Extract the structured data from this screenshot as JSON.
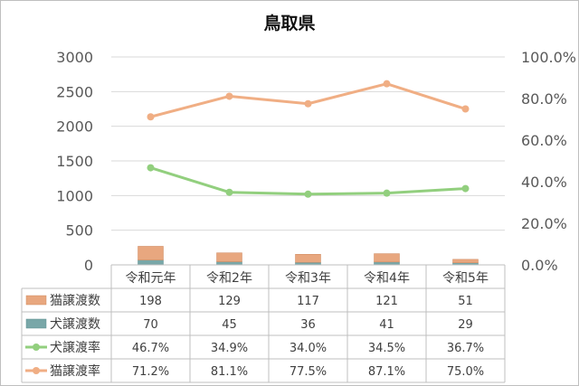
{
  "chart_data": {
    "type": "bar",
    "title": "鳥取県",
    "categories": [
      "令和元年",
      "令和2年",
      "令和3年",
      "令和4年",
      "令和5年"
    ],
    "y_left": {
      "ylim": [
        0,
        3000
      ],
      "ticks": [
        "3000",
        "2500",
        "2000",
        "1500",
        "1000",
        "500",
        "0"
      ]
    },
    "y_right": {
      "ylim": [
        0,
        1
      ],
      "ticks": [
        "100.0%",
        "80.0%",
        "60.0%",
        "40.0%",
        "20.0%",
        "0.0%"
      ]
    },
    "gridlines": true,
    "legend": "data-table",
    "series": [
      {
        "name": "猫譲渡数",
        "type": "stacked-bar",
        "axis": "left",
        "color": "#e8a77f",
        "values": [
          198,
          129,
          117,
          121,
          51
        ],
        "labels": [
          "198",
          "129",
          "117",
          "121",
          "51"
        ]
      },
      {
        "name": "犬譲渡数",
        "type": "stacked-bar",
        "axis": "left",
        "color": "#79a7a8",
        "values": [
          70,
          45,
          36,
          41,
          29
        ],
        "labels": [
          "70",
          "45",
          "36",
          "41",
          "29"
        ]
      },
      {
        "name": "犬譲渡率",
        "type": "line",
        "axis": "right",
        "color": "#92cf7e",
        "values": [
          0.467,
          0.349,
          0.34,
          0.345,
          0.367
        ],
        "labels": [
          "46.7%",
          "34.9%",
          "34.0%",
          "34.5%",
          "36.7%"
        ]
      },
      {
        "name": "猫譲渡率",
        "type": "line",
        "axis": "right",
        "color": "#f0ae84",
        "values": [
          0.712,
          0.811,
          0.775,
          0.871,
          0.75
        ],
        "labels": [
          "71.2%",
          "81.1%",
          "77.5%",
          "87.1%",
          "75.0%"
        ]
      }
    ]
  }
}
